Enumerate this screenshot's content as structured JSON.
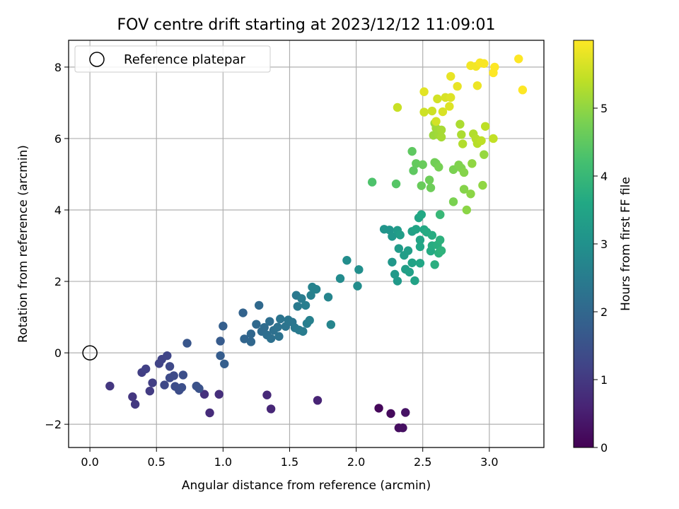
{
  "chart_data": {
    "type": "scatter",
    "title": "FOV centre drift starting at 2023/12/12 11:09:01",
    "xlabel": "Angular distance from reference (arcmin)",
    "ylabel": "Rotation from reference (arcmin)",
    "colorbar_label": "Hours from first FF file",
    "xlim": [
      -0.16,
      3.41
    ],
    "ylim": [
      -2.65,
      8.75
    ],
    "colorbar_range": [
      0,
      6
    ],
    "x_ticks": [
      0.0,
      0.5,
      1.0,
      1.5,
      2.0,
      2.5,
      3.0
    ],
    "x_tick_labels": [
      "0.0",
      "0.5",
      "1.0",
      "1.5",
      "2.0",
      "2.5",
      "3.0"
    ],
    "y_ticks": [
      -2,
      0,
      2,
      4,
      6,
      8
    ],
    "y_tick_labels": [
      "−2",
      "0",
      "2",
      "4",
      "6",
      "8"
    ],
    "colorbar_ticks": [
      0,
      1,
      2,
      3,
      4,
      5
    ],
    "colorbar_tick_labels": [
      "0",
      "1",
      "2",
      "3",
      "4",
      "5"
    ],
    "grid": true,
    "colormap": "viridis",
    "legend": {
      "placement": "top-left",
      "entries": [
        {
          "label": "Reference platepar",
          "marker": "open-circle",
          "color": "#000000"
        }
      ]
    },
    "reference_point": {
      "x": 0.0,
      "y": 0.0
    },
    "points": [
      {
        "x": 2.17,
        "y": -1.55,
        "t": 0.1
      },
      {
        "x": 2.26,
        "y": -1.7,
        "t": 0.15
      },
      {
        "x": 2.32,
        "y": -2.1,
        "t": 0.2
      },
      {
        "x": 2.35,
        "y": -2.1,
        "t": 0.25
      },
      {
        "x": 2.37,
        "y": -1.67,
        "t": 0.3
      },
      {
        "x": 1.71,
        "y": -1.33,
        "t": 0.6
      },
      {
        "x": 1.36,
        "y": -1.57,
        "t": 0.65
      },
      {
        "x": 1.33,
        "y": -1.18,
        "t": 0.7
      },
      {
        "x": 0.9,
        "y": -1.68,
        "t": 0.75
      },
      {
        "x": 0.97,
        "y": -1.16,
        "t": 0.8
      },
      {
        "x": 0.86,
        "y": -1.16,
        "t": 0.85
      },
      {
        "x": 0.15,
        "y": -0.93,
        "t": 0.95
      },
      {
        "x": 0.32,
        "y": -1.23,
        "t": 0.95
      },
      {
        "x": 0.34,
        "y": -1.44,
        "t": 1.0
      },
      {
        "x": 0.45,
        "y": -1.07,
        "t": 1.05
      },
      {
        "x": 0.47,
        "y": -0.84,
        "t": 1.1
      },
      {
        "x": 0.39,
        "y": -0.55,
        "t": 1.1
      },
      {
        "x": 0.42,
        "y": -0.45,
        "t": 1.15
      },
      {
        "x": 0.52,
        "y": -0.3,
        "t": 1.2
      },
      {
        "x": 0.54,
        "y": -0.18,
        "t": 1.2
      },
      {
        "x": 0.58,
        "y": -0.08,
        "t": 1.25
      },
      {
        "x": 0.6,
        "y": -0.38,
        "t": 1.3
      },
      {
        "x": 0.56,
        "y": -0.9,
        "t": 1.3
      },
      {
        "x": 0.6,
        "y": -0.7,
        "t": 1.35
      },
      {
        "x": 0.63,
        "y": -0.64,
        "t": 1.35
      },
      {
        "x": 0.64,
        "y": -0.94,
        "t": 1.4
      },
      {
        "x": 0.67,
        "y": -1.05,
        "t": 1.4
      },
      {
        "x": 0.69,
        "y": -0.97,
        "t": 1.45
      },
      {
        "x": 0.7,
        "y": -0.62,
        "t": 1.45
      },
      {
        "x": 0.8,
        "y": -0.93,
        "t": 1.5
      },
      {
        "x": 0.82,
        "y": -1.0,
        "t": 1.5
      },
      {
        "x": 0.73,
        "y": 0.27,
        "t": 1.6
      },
      {
        "x": 0.98,
        "y": 0.33,
        "t": 1.7
      },
      {
        "x": 0.98,
        "y": -0.08,
        "t": 1.75
      },
      {
        "x": 1.01,
        "y": -0.31,
        "t": 1.8
      },
      {
        "x": 1.0,
        "y": 0.75,
        "t": 1.8
      },
      {
        "x": 1.15,
        "y": 1.12,
        "t": 1.9
      },
      {
        "x": 1.16,
        "y": 0.39,
        "t": 1.95
      },
      {
        "x": 1.21,
        "y": 0.31,
        "t": 2.0
      },
      {
        "x": 1.21,
        "y": 0.53,
        "t": 2.0
      },
      {
        "x": 1.25,
        "y": 0.8,
        "t": 2.05
      },
      {
        "x": 1.27,
        "y": 1.33,
        "t": 2.05
      },
      {
        "x": 1.29,
        "y": 0.6,
        "t": 2.1
      },
      {
        "x": 1.31,
        "y": 0.71,
        "t": 2.1
      },
      {
        "x": 1.33,
        "y": 0.5,
        "t": 2.15
      },
      {
        "x": 1.35,
        "y": 0.88,
        "t": 2.15
      },
      {
        "x": 1.36,
        "y": 0.4,
        "t": 2.2
      },
      {
        "x": 1.38,
        "y": 0.63,
        "t": 2.2
      },
      {
        "x": 1.41,
        "y": 0.72,
        "t": 2.25
      },
      {
        "x": 1.42,
        "y": 0.46,
        "t": 2.25
      },
      {
        "x": 1.43,
        "y": 0.95,
        "t": 2.3
      },
      {
        "x": 1.47,
        "y": 0.74,
        "t": 2.3
      },
      {
        "x": 1.49,
        "y": 0.92,
        "t": 2.35
      },
      {
        "x": 1.52,
        "y": 0.86,
        "t": 2.35
      },
      {
        "x": 1.54,
        "y": 0.7,
        "t": 2.4
      },
      {
        "x": 1.55,
        "y": 1.61,
        "t": 2.4
      },
      {
        "x": 1.56,
        "y": 1.3,
        "t": 2.45
      },
      {
        "x": 1.57,
        "y": 0.64,
        "t": 2.45
      },
      {
        "x": 1.6,
        "y": 0.6,
        "t": 2.5
      },
      {
        "x": 1.59,
        "y": 1.52,
        "t": 2.5
      },
      {
        "x": 1.62,
        "y": 1.33,
        "t": 2.55
      },
      {
        "x": 1.63,
        "y": 0.82,
        "t": 2.55
      },
      {
        "x": 1.65,
        "y": 0.91,
        "t": 2.6
      },
      {
        "x": 1.66,
        "y": 1.61,
        "t": 2.6
      },
      {
        "x": 1.67,
        "y": 1.84,
        "t": 2.65
      },
      {
        "x": 1.7,
        "y": 1.78,
        "t": 2.65
      },
      {
        "x": 1.79,
        "y": 1.56,
        "t": 2.7
      },
      {
        "x": 1.81,
        "y": 0.79,
        "t": 2.7
      },
      {
        "x": 1.88,
        "y": 2.08,
        "t": 2.85
      },
      {
        "x": 1.93,
        "y": 2.59,
        "t": 2.9
      },
      {
        "x": 2.01,
        "y": 1.87,
        "t": 2.9
      },
      {
        "x": 2.02,
        "y": 2.33,
        "t": 2.95
      },
      {
        "x": 2.21,
        "y": 3.46,
        "t": 3.1
      },
      {
        "x": 2.25,
        "y": 3.44,
        "t": 3.1
      },
      {
        "x": 2.27,
        "y": 3.26,
        "t": 3.15
      },
      {
        "x": 2.27,
        "y": 2.54,
        "t": 3.15
      },
      {
        "x": 2.29,
        "y": 2.2,
        "t": 3.2
      },
      {
        "x": 2.31,
        "y": 2.01,
        "t": 3.2
      },
      {
        "x": 2.31,
        "y": 3.43,
        "t": 3.25
      },
      {
        "x": 2.32,
        "y": 2.92,
        "t": 3.25
      },
      {
        "x": 2.33,
        "y": 3.3,
        "t": 3.3
      },
      {
        "x": 2.36,
        "y": 2.73,
        "t": 3.3
      },
      {
        "x": 2.37,
        "y": 2.34,
        "t": 3.35
      },
      {
        "x": 2.39,
        "y": 2.86,
        "t": 3.35
      },
      {
        "x": 2.4,
        "y": 2.26,
        "t": 3.4
      },
      {
        "x": 2.42,
        "y": 3.4,
        "t": 3.4
      },
      {
        "x": 2.42,
        "y": 2.52,
        "t": 3.45
      },
      {
        "x": 2.44,
        "y": 2.02,
        "t": 3.45
      },
      {
        "x": 2.45,
        "y": 3.46,
        "t": 3.5
      },
      {
        "x": 2.47,
        "y": 3.78,
        "t": 3.5
      },
      {
        "x": 2.48,
        "y": 3.16,
        "t": 3.5
      },
      {
        "x": 2.48,
        "y": 2.97,
        "t": 3.55
      },
      {
        "x": 2.48,
        "y": 2.51,
        "t": 3.55
      },
      {
        "x": 2.49,
        "y": 3.87,
        "t": 3.6
      },
      {
        "x": 2.51,
        "y": 3.45,
        "t": 3.6
      },
      {
        "x": 2.53,
        "y": 3.38,
        "t": 3.65
      },
      {
        "x": 2.56,
        "y": 2.85,
        "t": 3.65
      },
      {
        "x": 2.57,
        "y": 3.29,
        "t": 3.7
      },
      {
        "x": 2.57,
        "y": 3.0,
        "t": 3.7
      },
      {
        "x": 2.59,
        "y": 2.47,
        "t": 3.75
      },
      {
        "x": 2.61,
        "y": 3.02,
        "t": 3.75
      },
      {
        "x": 2.62,
        "y": 2.79,
        "t": 3.8
      },
      {
        "x": 2.63,
        "y": 3.16,
        "t": 3.8
      },
      {
        "x": 2.64,
        "y": 2.86,
        "t": 3.85
      },
      {
        "x": 2.63,
        "y": 3.87,
        "t": 3.9
      },
      {
        "x": 2.12,
        "y": 4.78,
        "t": 4.3
      },
      {
        "x": 2.3,
        "y": 4.73,
        "t": 4.4
      },
      {
        "x": 2.42,
        "y": 5.64,
        "t": 4.5
      },
      {
        "x": 2.43,
        "y": 5.1,
        "t": 4.5
      },
      {
        "x": 2.45,
        "y": 5.3,
        "t": 4.55
      },
      {
        "x": 2.5,
        "y": 5.27,
        "t": 4.6
      },
      {
        "x": 2.49,
        "y": 4.68,
        "t": 4.6
      },
      {
        "x": 2.55,
        "y": 4.84,
        "t": 4.65
      },
      {
        "x": 2.56,
        "y": 4.62,
        "t": 4.65
      },
      {
        "x": 2.59,
        "y": 5.33,
        "t": 4.7
      },
      {
        "x": 2.6,
        "y": 5.3,
        "t": 4.7
      },
      {
        "x": 2.62,
        "y": 5.2,
        "t": 4.75
      },
      {
        "x": 2.63,
        "y": 3.87,
        "t": 4.0
      },
      {
        "x": 2.73,
        "y": 4.23,
        "t": 4.8
      },
      {
        "x": 2.73,
        "y": 5.13,
        "t": 4.8
      },
      {
        "x": 2.77,
        "y": 5.26,
        "t": 4.85
      },
      {
        "x": 2.79,
        "y": 5.17,
        "t": 4.85
      },
      {
        "x": 2.81,
        "y": 5.05,
        "t": 4.9
      },
      {
        "x": 2.81,
        "y": 4.58,
        "t": 4.9
      },
      {
        "x": 2.83,
        "y": 4.0,
        "t": 4.95
      },
      {
        "x": 2.86,
        "y": 4.45,
        "t": 4.95
      },
      {
        "x": 2.87,
        "y": 5.3,
        "t": 5.0
      },
      {
        "x": 2.95,
        "y": 4.69,
        "t": 5.0
      },
      {
        "x": 2.96,
        "y": 5.55,
        "t": 5.05
      },
      {
        "x": 2.58,
        "y": 6.09,
        "t": 5.1
      },
      {
        "x": 2.59,
        "y": 6.43,
        "t": 5.1
      },
      {
        "x": 2.6,
        "y": 6.29,
        "t": 5.15
      },
      {
        "x": 2.62,
        "y": 6.1,
        "t": 5.15
      },
      {
        "x": 2.64,
        "y": 6.04,
        "t": 5.2
      },
      {
        "x": 2.64,
        "y": 6.24,
        "t": 5.2
      },
      {
        "x": 2.78,
        "y": 6.4,
        "t": 5.25
      },
      {
        "x": 2.79,
        "y": 6.11,
        "t": 5.25
      },
      {
        "x": 2.8,
        "y": 5.85,
        "t": 5.3
      },
      {
        "x": 2.88,
        "y": 6.13,
        "t": 5.3
      },
      {
        "x": 2.9,
        "y": 5.99,
        "t": 5.35
      },
      {
        "x": 2.91,
        "y": 5.86,
        "t": 5.35
      },
      {
        "x": 2.94,
        "y": 5.94,
        "t": 5.4
      },
      {
        "x": 2.97,
        "y": 6.34,
        "t": 5.4
      },
      {
        "x": 3.03,
        "y": 6.0,
        "t": 5.45
      },
      {
        "x": 2.31,
        "y": 6.87,
        "t": 5.5
      },
      {
        "x": 2.51,
        "y": 6.74,
        "t": 5.55
      },
      {
        "x": 2.57,
        "y": 6.77,
        "t": 5.55
      },
      {
        "x": 2.6,
        "y": 6.48,
        "t": 5.6
      },
      {
        "x": 2.61,
        "y": 7.11,
        "t": 5.6
      },
      {
        "x": 2.65,
        "y": 6.75,
        "t": 5.65
      },
      {
        "x": 2.67,
        "y": 7.15,
        "t": 5.65
      },
      {
        "x": 2.7,
        "y": 6.9,
        "t": 5.7
      },
      {
        "x": 2.71,
        "y": 7.15,
        "t": 5.7
      },
      {
        "x": 2.51,
        "y": 7.31,
        "t": 5.75
      },
      {
        "x": 2.71,
        "y": 7.74,
        "t": 5.8
      },
      {
        "x": 2.76,
        "y": 7.46,
        "t": 5.8
      },
      {
        "x": 2.91,
        "y": 7.48,
        "t": 5.85
      },
      {
        "x": 2.86,
        "y": 8.04,
        "t": 5.9
      },
      {
        "x": 2.9,
        "y": 8.02,
        "t": 5.9
      },
      {
        "x": 2.93,
        "y": 8.12,
        "t": 5.95
      },
      {
        "x": 2.96,
        "y": 8.1,
        "t": 5.95
      },
      {
        "x": 3.03,
        "y": 7.84,
        "t": 6.0
      },
      {
        "x": 3.04,
        "y": 8.0,
        "t": 6.0
      },
      {
        "x": 3.22,
        "y": 8.23,
        "t": 6.0
      },
      {
        "x": 3.25,
        "y": 7.36,
        "t": 6.0
      }
    ]
  }
}
